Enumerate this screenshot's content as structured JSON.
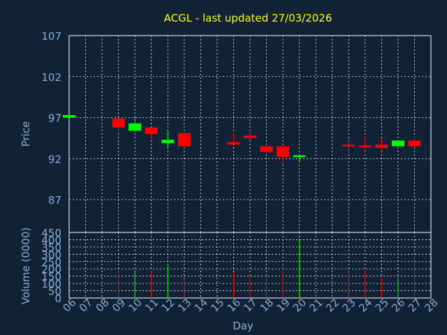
{
  "chart_data": [
    {
      "type": "candlestick",
      "title": "ACGL - last updated 27/03/2026",
      "ylabel": "Price",
      "ylim": [
        83,
        107
      ],
      "yticks": [
        107,
        102,
        97,
        92,
        87
      ],
      "grid": true,
      "colors": {
        "up": "#00ff00",
        "down": "#ff0000",
        "title": "#ffff00",
        "axis_text": "#8aaed2",
        "background": "#112236",
        "plot_border": "#ffffff",
        "grid": "#ffffff"
      },
      "candles": [
        {
          "day": "06",
          "open": 97.0,
          "close": 97.3,
          "high": 97.3,
          "low": 97.0
        },
        {
          "day": "09",
          "open": 96.9,
          "close": 95.8,
          "high": 97.0,
          "low": 95.2
        },
        {
          "day": "10",
          "open": 95.4,
          "close": 96.3,
          "high": 97.0,
          "low": 95.4
        },
        {
          "day": "11",
          "open": 95.8,
          "close": 95.0,
          "high": 95.8,
          "low": 94.3
        },
        {
          "day": "12",
          "open": 93.9,
          "close": 94.3,
          "high": 95.4,
          "low": 93.3
        },
        {
          "day": "13",
          "open": 95.1,
          "close": 93.5,
          "high": 95.4,
          "low": 93.5
        },
        {
          "day": "16",
          "open": 94.0,
          "close": 93.7,
          "high": 95.1,
          "low": 93.7
        },
        {
          "day": "17",
          "open": 94.8,
          "close": 94.5,
          "high": 95.4,
          "low": 94.3
        },
        {
          "day": "18",
          "open": 93.5,
          "close": 92.8,
          "high": 93.5,
          "low": 92.8
        },
        {
          "day": "19",
          "open": 93.5,
          "close": 92.2,
          "high": 93.5,
          "low": 91.3
        },
        {
          "day": "20",
          "open": 92.2,
          "close": 92.4,
          "high": 92.4,
          "low": 91.6
        },
        {
          "day": "23",
          "open": 93.7,
          "close": 93.6,
          "high": 94.4,
          "low": 92.7
        },
        {
          "day": "24",
          "open": 93.6,
          "close": 93.5,
          "high": 94.7,
          "low": 92.9
        },
        {
          "day": "25",
          "open": 93.7,
          "close": 93.3,
          "high": 94.4,
          "low": 92.9
        },
        {
          "day": "26",
          "open": 93.5,
          "close": 94.2,
          "high": 94.2,
          "low": 93.5
        },
        {
          "day": "27",
          "open": 94.2,
          "close": 93.5,
          "high": 94.7,
          "low": 93.5
        }
      ]
    },
    {
      "type": "bar",
      "ylabel": "Volume (0000)",
      "xlabel": "Day",
      "ylim": [
        0,
        450
      ],
      "yticks": [
        450,
        400,
        350,
        300,
        250,
        200,
        150,
        100,
        50,
        0
      ],
      "categories": [
        "06",
        "07",
        "08",
        "09",
        "10",
        "11",
        "12",
        "13",
        "14",
        "15",
        "16",
        "17",
        "18",
        "19",
        "20",
        "21",
        "22",
        "23",
        "24",
        "25",
        "26",
        "27",
        "28"
      ],
      "values": [
        0,
        0,
        0,
        200,
        190,
        190,
        220,
        120,
        0,
        0,
        175,
        145,
        145,
        205,
        405,
        0,
        0,
        200,
        195,
        140,
        140,
        290,
        0
      ],
      "bar_colors": [
        "",
        "",
        "",
        "#ff0000",
        "#00ff00",
        "#ff0000",
        "#00ff00",
        "#ff0000",
        "",
        "",
        "#ff0000",
        "#ff0000",
        "#ff0000",
        "#ff0000",
        "#00ff00",
        "",
        "",
        "#ff0000",
        "#ff0000",
        "#ff0000",
        "#00ff00",
        "#ff0000",
        ""
      ]
    }
  ]
}
